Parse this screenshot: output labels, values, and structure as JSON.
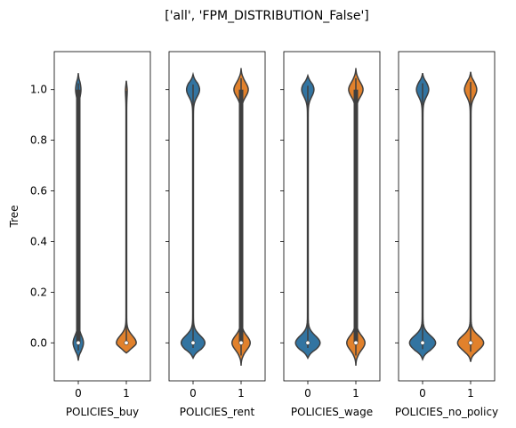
{
  "figure": {
    "suptitle": "['all', 'FPM_DISTRIBUTION_False']",
    "ylabel": "Tree"
  },
  "colors": {
    "group0": "#3274a1",
    "group1": "#e1812c",
    "edge": "#3f3f3f"
  },
  "chart_data": {
    "type": "violin",
    "ylim": [
      -0.15,
      1.15
    ],
    "yticks": [
      0.0,
      0.2,
      0.4,
      0.6,
      0.8,
      1.0
    ],
    "ytick_labels": [
      "0.0",
      "0.2",
      "0.4",
      "0.6",
      "0.8",
      "1.0"
    ],
    "grid": false,
    "legend": "none",
    "panels": [
      {
        "xlabel": "POLICIES_buy",
        "categories": [
          "0",
          "1"
        ],
        "violins": [
          {
            "category": "0",
            "ymin": -0.07,
            "ymax": 1.065,
            "bottom_width": 0.25,
            "top_width": 0.12,
            "thin": 0.02,
            "q1": 0.0,
            "q3": 1.0,
            "median": 0.0
          },
          {
            "category": "1",
            "ymin": -0.04,
            "ymax": 1.035,
            "bottom_width": 0.5,
            "top_width": 0.03,
            "thin": 0.018,
            "q1": 0.0,
            "q3": 0.0,
            "median": 0.0
          }
        ]
      },
      {
        "xlabel": "POLICIES_rent",
        "categories": [
          "0",
          "1"
        ],
        "violins": [
          {
            "category": "0",
            "ymin": -0.06,
            "ymax": 1.06,
            "bottom_width": 0.6,
            "top_width": 0.32,
            "thin": 0.02,
            "q1": 0.0,
            "q3": 0.0,
            "median": 0.0
          },
          {
            "category": "1",
            "ymin": -0.09,
            "ymax": 1.085,
            "bottom_width": 0.45,
            "top_width": 0.35,
            "thin": 0.025,
            "q1": 0.0,
            "q3": 1.0,
            "median": 0.0
          }
        ]
      },
      {
        "xlabel": "POLICIES_wage",
        "categories": [
          "0",
          "1"
        ],
        "violins": [
          {
            "category": "0",
            "ymin": -0.06,
            "ymax": 1.055,
            "bottom_width": 0.62,
            "top_width": 0.3,
            "thin": 0.02,
            "q1": 0.0,
            "q3": 0.0,
            "median": 0.0
          },
          {
            "category": "1",
            "ymin": -0.09,
            "ymax": 1.085,
            "bottom_width": 0.45,
            "top_width": 0.35,
            "thin": 0.025,
            "q1": 0.0,
            "q3": 1.0,
            "median": 0.0
          }
        ]
      },
      {
        "xlabel": "POLICIES_no_policy",
        "categories": [
          "0",
          "1"
        ],
        "violins": [
          {
            "category": "0",
            "ymin": -0.065,
            "ymax": 1.065,
            "bottom_width": 0.66,
            "top_width": 0.3,
            "thin": 0.02,
            "q1": 0.0,
            "q3": 0.0,
            "median": 0.0
          },
          {
            "category": "1",
            "ymin": -0.075,
            "ymax": 1.07,
            "bottom_width": 0.66,
            "top_width": 0.3,
            "thin": 0.02,
            "q1": 0.0,
            "q3": 0.0,
            "median": 0.0
          }
        ]
      }
    ]
  }
}
